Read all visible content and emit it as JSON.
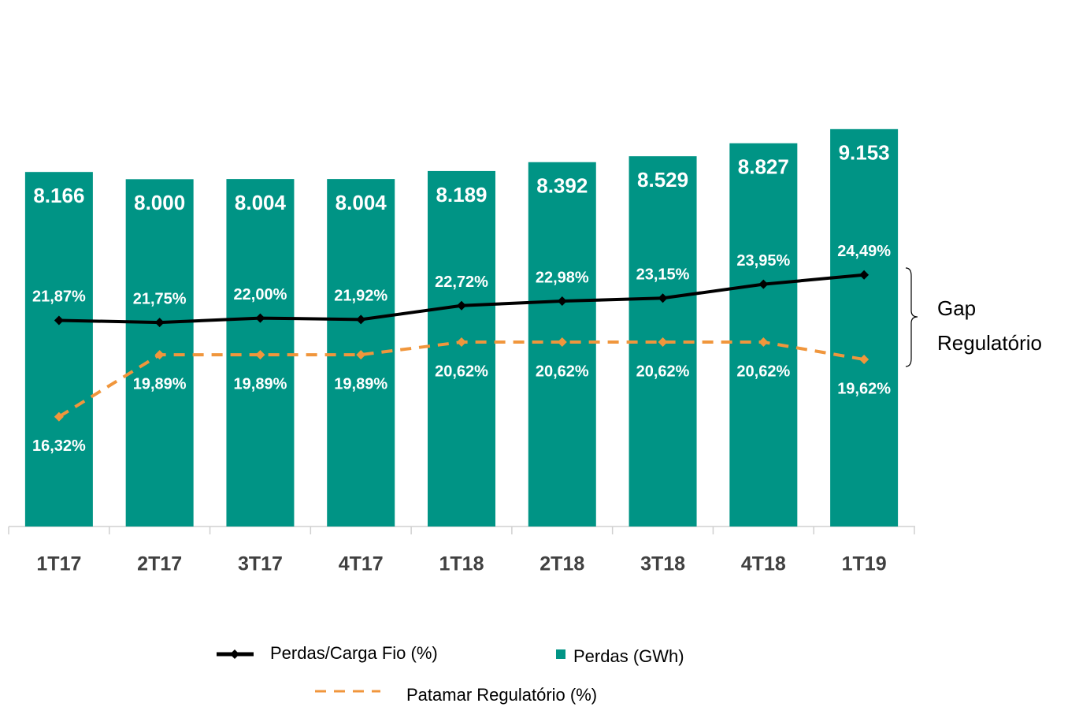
{
  "chart_data": {
    "type": "bar",
    "categories": [
      "1T17",
      "2T17",
      "3T17",
      "4T17",
      "1T18",
      "2T18",
      "3T18",
      "4T18",
      "1T19"
    ],
    "series": [
      {
        "name": "Perdas (GWh)",
        "type": "bar",
        "color": "#009485",
        "values": [
          8166,
          8000,
          8004,
          8004,
          8189,
          8392,
          8529,
          8827,
          9153
        ],
        "value_labels": [
          "8.166",
          "8.000",
          "8.004",
          "8.004",
          "8.189",
          "8.392",
          "8.529",
          "8.827",
          "9.153"
        ]
      },
      {
        "name": "Perdas/Carga Fio (%)",
        "type": "line",
        "axis": "y2",
        "color": "#000000",
        "values": [
          21.87,
          21.75,
          22.0,
          21.92,
          22.72,
          22.98,
          23.15,
          23.95,
          24.49
        ],
        "value_labels": [
          "21,87%",
          "21,75%",
          "22,00%",
          "21,92%",
          "22,72%",
          "22,98%",
          "23,15%",
          "23,95%",
          "24,49%"
        ]
      },
      {
        "name": "Patamar Regulatório (%)",
        "type": "line",
        "axis": "y2",
        "dashed": true,
        "color": "#f0963c",
        "values": [
          16.32,
          19.89,
          19.89,
          19.89,
          20.62,
          20.62,
          20.62,
          20.62,
          19.62
        ],
        "value_labels": [
          "16,32%",
          "19,89%",
          "19,89%",
          "19,89%",
          "20,62%",
          "20,62%",
          "20,62%",
          "20,62%",
          "19,62%"
        ]
      }
    ],
    "ylim": [
      0,
      12000
    ],
    "y2lim": [
      10,
      40
    ],
    "annotation": [
      "Gap",
      "Regulatório"
    ]
  }
}
